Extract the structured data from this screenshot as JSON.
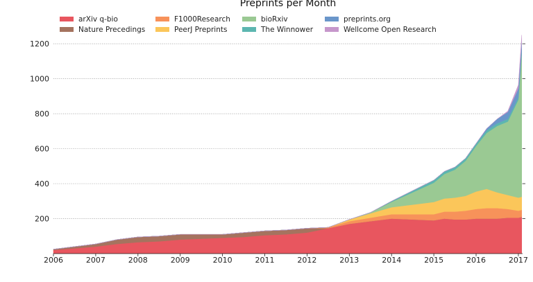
{
  "chart_data": {
    "type": "area",
    "stacked": true,
    "title": "Preprints per Month",
    "xlabel": "",
    "ylabel": "",
    "xlim": [
      2006.0,
      2017.1
    ],
    "ylim": [
      0,
      1260
    ],
    "x_ticks": [
      2006,
      2007,
      2008,
      2009,
      2010,
      2011,
      2012,
      2013,
      2014,
      2015,
      2016,
      2017
    ],
    "y_ticks": [
      200,
      400,
      600,
      800,
      1000,
      1200
    ],
    "grid": "horizontal dotted",
    "legend_placement": "top",
    "x": [
      2006.0,
      2006.5,
      2007.0,
      2007.5,
      2008.0,
      2008.5,
      2009.0,
      2009.5,
      2010.0,
      2010.5,
      2011.0,
      2011.5,
      2012.0,
      2012.5,
      2013.0,
      2013.5,
      2014.0,
      2014.5,
      2015.0,
      2015.25,
      2015.5,
      2015.75,
      2016.0,
      2016.25,
      2016.5,
      2016.75,
      2017.0,
      2017.08
    ],
    "series": [
      {
        "name": "arXiv q-bio",
        "color": "#e8565f",
        "values": [
          20,
          30,
          40,
          55,
          65,
          70,
          80,
          85,
          90,
          95,
          105,
          110,
          120,
          145,
          170,
          185,
          200,
          195,
          190,
          200,
          195,
          195,
          200,
          200,
          200,
          205,
          205,
          210
        ]
      },
      {
        "name": "Nature Precedings",
        "color": "#a5735f",
        "values": [
          5,
          10,
          15,
          25,
          30,
          30,
          30,
          25,
          20,
          25,
          25,
          25,
          25,
          0,
          0,
          0,
          0,
          0,
          0,
          0,
          0,
          0,
          0,
          0,
          0,
          0,
          0,
          0
        ]
      },
      {
        "name": "F1000Research",
        "color": "#f7925a",
        "values": [
          0,
          0,
          0,
          0,
          0,
          0,
          0,
          0,
          0,
          0,
          0,
          0,
          0,
          5,
          15,
          20,
          25,
          30,
          35,
          40,
          45,
          50,
          55,
          60,
          60,
          50,
          40,
          40
        ]
      },
      {
        "name": "PeerJ Preprints",
        "color": "#fbc65a",
        "values": [
          0,
          0,
          0,
          0,
          0,
          0,
          0,
          0,
          0,
          0,
          0,
          0,
          0,
          0,
          10,
          25,
          40,
          55,
          70,
          75,
          80,
          85,
          100,
          110,
          90,
          80,
          75,
          75
        ]
      },
      {
        "name": "bioRxiv",
        "color": "#9ac993",
        "values": [
          0,
          0,
          0,
          0,
          0,
          0,
          0,
          0,
          0,
          0,
          0,
          0,
          0,
          0,
          0,
          5,
          30,
          70,
          110,
          140,
          160,
          200,
          260,
          320,
          380,
          420,
          560,
          820
        ]
      },
      {
        "name": "The Winnower",
        "color": "#5cb6b0",
        "values": [
          0,
          0,
          0,
          0,
          0,
          0,
          0,
          0,
          0,
          0,
          0,
          0,
          0,
          0,
          0,
          0,
          5,
          10,
          15,
          15,
          15,
          15,
          15,
          15,
          15,
          15,
          15,
          15
        ]
      },
      {
        "name": "preprints.org",
        "color": "#6a96ca",
        "values": [
          0,
          0,
          0,
          0,
          0,
          0,
          0,
          0,
          0,
          0,
          0,
          0,
          0,
          0,
          0,
          0,
          0,
          0,
          0,
          0,
          0,
          0,
          0,
          10,
          25,
          40,
          50,
          55
        ]
      },
      {
        "name": "Wellcome Open Research",
        "color": "#c697cb",
        "values": [
          0,
          0,
          0,
          0,
          0,
          0,
          0,
          0,
          0,
          0,
          0,
          0,
          0,
          0,
          0,
          0,
          0,
          0,
          0,
          0,
          0,
          0,
          0,
          0,
          0,
          5,
          20,
          35
        ]
      }
    ]
  }
}
